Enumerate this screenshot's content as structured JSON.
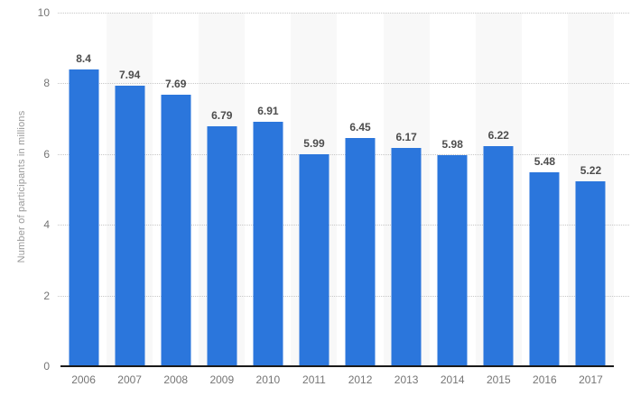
{
  "chart_data": {
    "type": "bar",
    "title": "",
    "xlabel": "",
    "ylabel": "Number of participants in millions",
    "categories": [
      "2006",
      "2007",
      "2008",
      "2009",
      "2010",
      "2011",
      "2012",
      "2013",
      "2014",
      "2015",
      "2016",
      "2017"
    ],
    "values": [
      8.4,
      7.94,
      7.69,
      6.79,
      6.91,
      5.99,
      6.45,
      6.17,
      5.98,
      6.22,
      5.48,
      5.22
    ],
    "labels": [
      "8.4",
      "7.94",
      "7.69",
      "6.79",
      "6.91",
      "5.99",
      "6.45",
      "6.17",
      "5.98",
      "6.22",
      "5.48",
      "5.22"
    ],
    "ylim": [
      0,
      10
    ],
    "yticks": [
      0,
      2,
      4,
      6,
      8,
      10
    ],
    "grid": "horizontal dotted lines at each y tick",
    "legend_position": "none",
    "striped_categories": [
      "2007",
      "2009",
      "2011",
      "2013",
      "2015",
      "2017"
    ],
    "colors": {
      "bar": "#2b76dc",
      "band_stripe": "#f8f8f8",
      "gridline": "#c7c7c7",
      "axis_line": "#1a1a1a",
      "tick_label": "#757575",
      "value_label": "#4d4d4d",
      "axis_title": "#999999"
    }
  }
}
